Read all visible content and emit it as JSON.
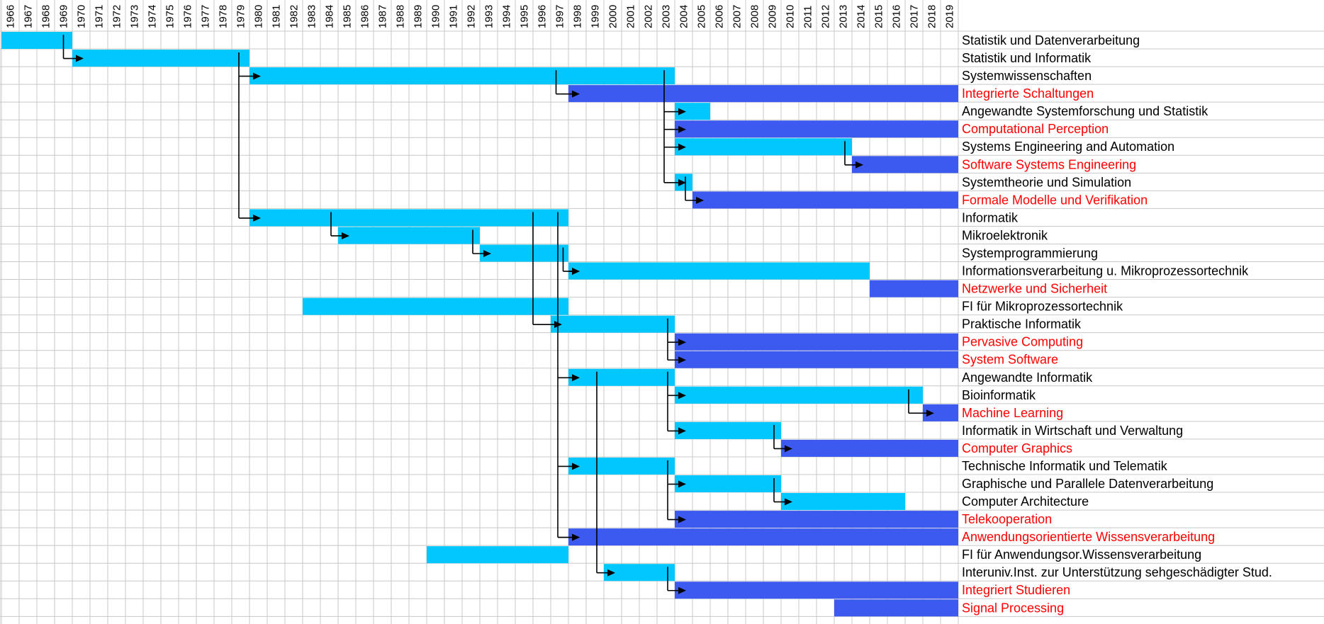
{
  "chart_data": {
    "type": "gantt",
    "x_start": 1966,
    "x_end": 2019,
    "years": [
      "1966",
      "1967",
      "1968",
      "1969",
      "1970",
      "1971",
      "1972",
      "1973",
      "1974",
      "1975",
      "1976",
      "1977",
      "1978",
      "1979",
      "1980",
      "1981",
      "1982",
      "1983",
      "1984",
      "1985",
      "1986",
      "1987",
      "1988",
      "1989",
      "1990",
      "1991",
      "1992",
      "1993",
      "1994",
      "1995",
      "1996",
      "1997",
      "1998",
      "1999",
      "2000",
      "2001",
      "2002",
      "2003",
      "2004",
      "2005",
      "2006",
      "2007",
      "2008",
      "2009",
      "2010",
      "2011",
      "2012",
      "2013",
      "2014",
      "2015",
      "2016",
      "2017",
      "2018",
      "2019"
    ],
    "colors": {
      "historic": "#00c8ff",
      "current": "#3c5af0",
      "current_label": "#ff0000",
      "historic_label": "#000000",
      "grid": "#c8c8c8"
    },
    "grid": true,
    "rows": [
      {
        "label": "Statistik und Datenverarbeitung",
        "start": 1966,
        "end": 1970,
        "current": false
      },
      {
        "label": "Statistik und Informatik",
        "start": 1970,
        "end": 1980,
        "current": false
      },
      {
        "label": "Systemwissenschaften",
        "start": 1980,
        "end": 2004,
        "current": false
      },
      {
        "label": "Integrierte Schaltungen",
        "start": 1998,
        "end": 2020,
        "current": true
      },
      {
        "label": "Angewandte Systemforschung und Statistik",
        "start": 2004,
        "end": 2006,
        "current": false
      },
      {
        "label": "Computational Perception",
        "start": 2004,
        "end": 2020,
        "current": true
      },
      {
        "label": "Systems Engineering and Automation",
        "start": 2004,
        "end": 2014,
        "current": false
      },
      {
        "label": "Software Systems Engineering",
        "start": 2014,
        "end": 2020,
        "current": true
      },
      {
        "label": "Systemtheorie und Simulation",
        "start": 2004,
        "end": 2005,
        "current": false
      },
      {
        "label": "Formale Modelle und Verifikation",
        "start": 2005,
        "end": 2020,
        "current": true
      },
      {
        "label": "Informatik",
        "start": 1980,
        "end": 1998,
        "current": false
      },
      {
        "label": "Mikroelektronik",
        "start": 1985,
        "end": 1993,
        "current": false
      },
      {
        "label": "Systemprogrammierung",
        "start": 1993,
        "end": 1998,
        "current": false
      },
      {
        "label": "Informationsverarbeitung u. Mikroprozessortechnik",
        "start": 1998,
        "end": 2015,
        "current": false
      },
      {
        "label": "Netzwerke und Sicherheit",
        "start": 2015,
        "end": 2020,
        "current": true
      },
      {
        "label": "FI für Mikroprozessortechnik",
        "start": 1983,
        "end": 1998,
        "current": false
      },
      {
        "label": "Praktische Informatik",
        "start": 1997,
        "end": 2004,
        "current": false
      },
      {
        "label": "Pervasive Computing",
        "start": 2004,
        "end": 2020,
        "current": true
      },
      {
        "label": "System Software",
        "start": 2004,
        "end": 2020,
        "current": true
      },
      {
        "label": "Angewandte Informatik",
        "start": 1998,
        "end": 2004,
        "current": false
      },
      {
        "label": "Bioinformatik",
        "start": 2004,
        "end": 2018,
        "current": false
      },
      {
        "label": "Machine Learning",
        "start": 2018,
        "end": 2020,
        "current": true
      },
      {
        "label": "Informatik in Wirtschaft und Verwaltung",
        "start": 2004,
        "end": 2010,
        "current": false
      },
      {
        "label": "Computer Graphics",
        "start": 2010,
        "end": 2020,
        "current": true
      },
      {
        "label": "Technische Informatik und Telematik",
        "start": 1998,
        "end": 2004,
        "current": false
      },
      {
        "label": "Graphische und Parallele Datenverarbeitung",
        "start": 2004,
        "end": 2010,
        "current": false
      },
      {
        "label": "Computer Architecture",
        "start": 2010,
        "end": 2017,
        "current": false
      },
      {
        "label": "Telekooperation",
        "start": 2004,
        "end": 2020,
        "current": true
      },
      {
        "label": "Anwendungsorientierte Wissensverarbeitung",
        "start": 1998,
        "end": 2020,
        "current": true
      },
      {
        "label": "FI für Anwendungsor.Wissensverarbeitung",
        "start": 1990,
        "end": 1998,
        "current": false
      },
      {
        "label": "Interuniv.Inst. zur Unterstützung sehgeschädigter Stud.",
        "start": 2000,
        "end": 2004,
        "current": false
      },
      {
        "label": "Integriert Studieren",
        "start": 2004,
        "end": 2020,
        "current": true
      },
      {
        "label": "Signal Processing",
        "start": 2013,
        "end": 2020,
        "current": true
      }
    ],
    "transitions": [
      {
        "year": 1969.5,
        "from": 0,
        "to": [
          1
        ]
      },
      {
        "year": 1979.4,
        "from": 1,
        "to": [
          2,
          10
        ]
      },
      {
        "year": 1997.3,
        "from": 2,
        "to": [
          3
        ]
      },
      {
        "year": 2003.4,
        "from": 2,
        "to": [
          4,
          5,
          6,
          8
        ]
      },
      {
        "year": 2013.6,
        "from": 6,
        "to": [
          7
        ]
      },
      {
        "year": 2004.6,
        "from": 8,
        "to": [
          9
        ]
      },
      {
        "year": 1984.6,
        "from": 10,
        "to": [
          11
        ]
      },
      {
        "year": 1992.6,
        "from": 11,
        "to": [
          12
        ]
      },
      {
        "year": 1997.7,
        "from": 12,
        "to": [
          13
        ]
      },
      {
        "year": 1998.0,
        "from": 15,
        "to": [
          13
        ]
      },
      {
        "year": 1996.0,
        "from": 10,
        "to": [
          16
        ]
      },
      {
        "year": 2003.6,
        "from": 16,
        "to": [
          17,
          18
        ]
      },
      {
        "year": 1997.4,
        "from": 10,
        "to": [
          19,
          24,
          28
        ]
      },
      {
        "year": 1997.4,
        "from": 29,
        "to": [
          28
        ]
      },
      {
        "year": 2003.6,
        "from": 19,
        "to": [
          20,
          22
        ]
      },
      {
        "year": 2017.2,
        "from": 20,
        "to": [
          21
        ]
      },
      {
        "year": 2009.6,
        "from": 22,
        "to": [
          23
        ]
      },
      {
        "year": 2003.6,
        "from": 24,
        "to": [
          25,
          27
        ]
      },
      {
        "year": 2009.6,
        "from": 25,
        "to": [
          26
        ]
      },
      {
        "year": 1999.6,
        "from": 19,
        "to": [
          30
        ]
      },
      {
        "year": 2003.6,
        "from": 30,
        "to": [
          31
        ]
      }
    ]
  }
}
